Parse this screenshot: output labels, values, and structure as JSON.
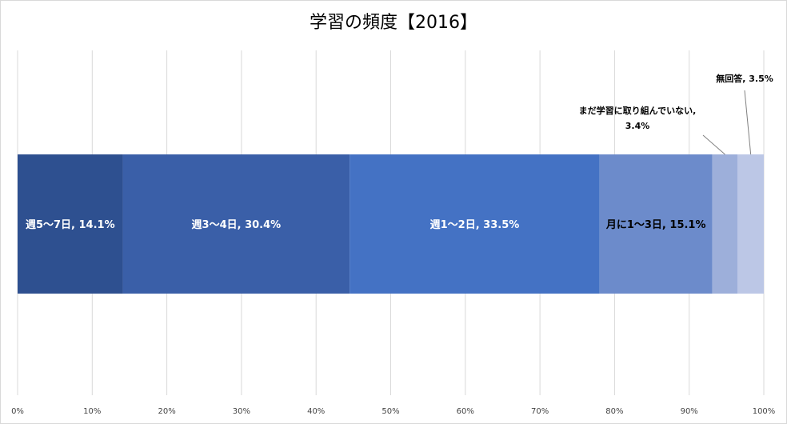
{
  "chart_data": {
    "type": "bar",
    "orientation": "horizontal",
    "stacked": true,
    "percent": true,
    "title": "学習の頻度【2016】",
    "xlim": [
      0,
      100
    ],
    "x_ticks": [
      "0%",
      "10%",
      "20%",
      "30%",
      "40%",
      "50%",
      "60%",
      "70%",
      "80%",
      "90%",
      "100%"
    ],
    "grid": true,
    "legend": "none",
    "series": [
      {
        "name": "週5～7日",
        "value": 14.1,
        "label": "週5～7日, 14.1%",
        "color": "#2e5090",
        "text_color": "#ffffff",
        "label_position": "inside"
      },
      {
        "name": "週3～4日",
        "value": 30.4,
        "label": "週3～4日, 30.4%",
        "color": "#3a5fa8",
        "text_color": "#ffffff",
        "label_position": "inside"
      },
      {
        "name": "週1～2日",
        "value": 33.5,
        "label": "週1～2日, 33.5%",
        "color": "#4472c4",
        "text_color": "#ffffff",
        "label_position": "inside"
      },
      {
        "name": "月に1～3日",
        "value": 15.1,
        "label": "月に1～3日, 15.1%",
        "color": "#6c8bcb",
        "text_color": "#000000",
        "label_position": "inside"
      },
      {
        "name": "まだ学習に取り組んでいない",
        "value": 3.4,
        "label_lines": [
          "まだ学習に取り組んでいない,",
          "3.4%"
        ],
        "color": "#9dafda",
        "label_position": "outside"
      },
      {
        "name": "無回答",
        "value": 3.5,
        "label": "無回答, 3.5%",
        "color": "#bcc7e6",
        "label_position": "outside"
      }
    ]
  }
}
